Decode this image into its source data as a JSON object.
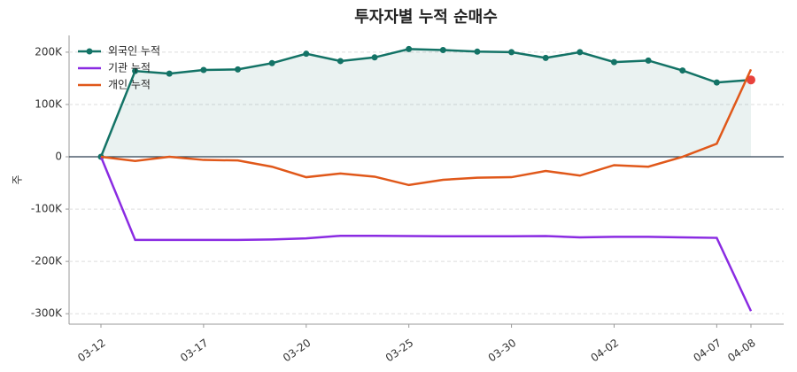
{
  "chart_data": {
    "type": "line",
    "title": "투자자별 누적 순매수",
    "y_label": "주",
    "categories": [
      "03-12",
      null,
      null,
      "03-17",
      null,
      null,
      "03-20",
      null,
      null,
      "03-25",
      null,
      null,
      "03-30",
      null,
      null,
      "04-02",
      null,
      null,
      "04-07",
      "04-08"
    ],
    "series": [
      {
        "name": "외국인 누적",
        "color": "#137366",
        "markers": true,
        "fill": true,
        "values": [
          0,
          164000,
          159000,
          166000,
          167000,
          179000,
          197000,
          183000,
          190000,
          206000,
          204000,
          201000,
          200000,
          189000,
          200000,
          181000,
          184000,
          165000,
          142000,
          147000
        ]
      },
      {
        "name": "기관 누적",
        "color": "#8a2be2",
        "values": [
          0,
          -159000,
          -159000,
          -159000,
          -159000,
          -158000,
          -156000,
          -151000,
          -151000,
          -151500,
          -152000,
          -152000,
          -152000,
          -151500,
          -154000,
          -153000,
          -153000,
          -154000,
          -155000,
          -295000
        ]
      },
      {
        "name": "개인 누적",
        "color": "#e0581a",
        "values": [
          0,
          -8000,
          0,
          -6000,
          -7000,
          -19000,
          -39000,
          -32000,
          -38000,
          -54000,
          -44000,
          -40000,
          -39000,
          -27000,
          -36000,
          -16000,
          -19000,
          0,
          25000,
          167000
        ]
      }
    ],
    "ylim": [
      -320000,
      232000
    ],
    "yticks": [
      {
        "value": -300000,
        "label": "-300K"
      },
      {
        "value": -200000,
        "label": "-200K"
      },
      {
        "value": -100000,
        "label": "-100K"
      },
      0,
      {
        "value": 100000,
        "label": "100K"
      },
      {
        "value": 200000,
        "label": "200K"
      }
    ],
    "grid": true,
    "legend": "upper left",
    "highlight_color": "#e8423c"
  }
}
